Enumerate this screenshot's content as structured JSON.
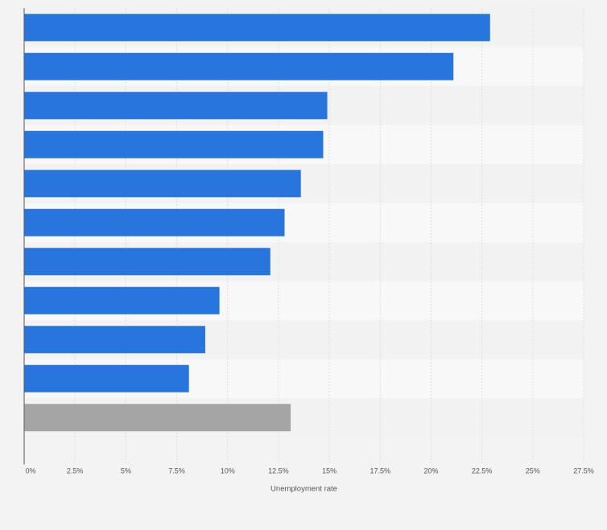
{
  "chart_data": {
    "type": "bar",
    "orientation": "horizontal",
    "categories": [
      "",
      "",
      "",
      "",
      "",
      "",
      "",
      "",
      "",
      "",
      ""
    ],
    "values": [
      22.9,
      21.1,
      14.9,
      14.7,
      13.6,
      12.8,
      12.1,
      9.6,
      8.9,
      8.1,
      13.1
    ],
    "highlight_index": 10,
    "title": "",
    "xlabel": "Unemployment rate",
    "ylabel": "",
    "xlim": [
      0,
      27.5
    ],
    "x_ticks": [
      "0%",
      "2.5%",
      "5%",
      "7.5%",
      "10%",
      "12.5%",
      "15%",
      "17.5%",
      "20%",
      "22.5%",
      "25%",
      "27.5%"
    ],
    "grid": true,
    "legend": "none",
    "colors": {
      "bar": "#2876dd",
      "highlight_bar": "#a5a5a5",
      "band_dark": "#f2f2f2",
      "band_light": "#f8f8f8",
      "gridline": "#dddddd",
      "axis": "#555555"
    }
  }
}
